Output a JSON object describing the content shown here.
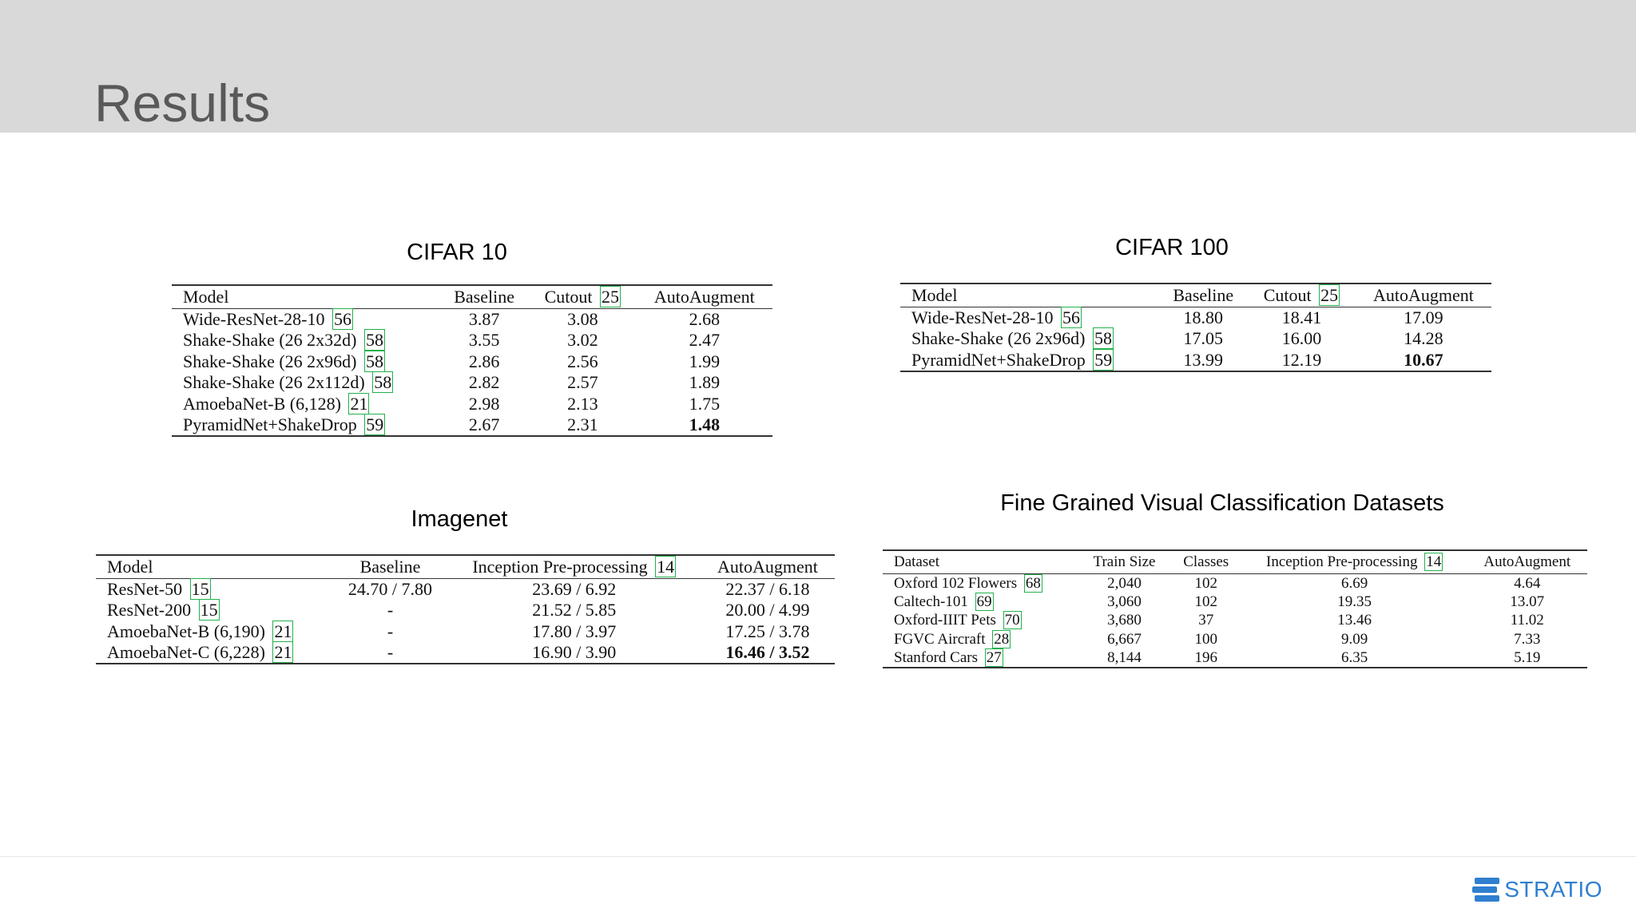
{
  "slide": {
    "title": "Results"
  },
  "tables": [
    {
      "caption": "CIFAR 10",
      "headers": [
        {
          "text": "Model"
        },
        {
          "text": "Baseline"
        },
        {
          "text": "Cutout",
          "ref": "25"
        },
        {
          "text": "AutoAugment"
        }
      ],
      "rows": [
        {
          "cells": [
            {
              "text": "Wide-ResNet-28-10",
              "ref": "56"
            },
            {
              "text": "3.87"
            },
            {
              "text": "3.08"
            },
            {
              "text": "2.68"
            }
          ]
        },
        {
          "cells": [
            {
              "text": "Shake-Shake (26 2x32d)",
              "ref": "58"
            },
            {
              "text": "3.55"
            },
            {
              "text": "3.02"
            },
            {
              "text": "2.47"
            }
          ]
        },
        {
          "cells": [
            {
              "text": "Shake-Shake (26 2x96d)",
              "ref": "58"
            },
            {
              "text": "2.86"
            },
            {
              "text": "2.56"
            },
            {
              "text": "1.99"
            }
          ]
        },
        {
          "cells": [
            {
              "text": "Shake-Shake (26 2x112d)",
              "ref": "58"
            },
            {
              "text": "2.82"
            },
            {
              "text": "2.57"
            },
            {
              "text": "1.89"
            }
          ]
        },
        {
          "cells": [
            {
              "text": "AmoebaNet-B (6,128)",
              "ref": "21"
            },
            {
              "text": "2.98"
            },
            {
              "text": "2.13"
            },
            {
              "text": "1.75"
            }
          ]
        },
        {
          "cells": [
            {
              "text": "PyramidNet+ShakeDrop",
              "ref": "59"
            },
            {
              "text": "2.67"
            },
            {
              "text": "2.31"
            },
            {
              "text": "1.48",
              "bold": true
            }
          ]
        }
      ]
    },
    {
      "caption": "CIFAR 100",
      "headers": [
        {
          "text": "Model"
        },
        {
          "text": "Baseline"
        },
        {
          "text": "Cutout",
          "ref": "25"
        },
        {
          "text": "AutoAugment"
        }
      ],
      "rows": [
        {
          "cells": [
            {
              "text": "Wide-ResNet-28-10",
              "ref": "56"
            },
            {
              "text": "18.80"
            },
            {
              "text": "18.41"
            },
            {
              "text": "17.09"
            }
          ]
        },
        {
          "cells": [
            {
              "text": "Shake-Shake (26 2x96d)",
              "ref": "58"
            },
            {
              "text": "17.05"
            },
            {
              "text": "16.00"
            },
            {
              "text": "14.28"
            }
          ]
        },
        {
          "cells": [
            {
              "text": "PyramidNet+ShakeDrop",
              "ref": "59"
            },
            {
              "text": "13.99"
            },
            {
              "text": "12.19"
            },
            {
              "text": "10.67",
              "bold": true
            }
          ]
        }
      ]
    },
    {
      "caption": "Imagenet",
      "headers": [
        {
          "text": "Model"
        },
        {
          "text": "Baseline"
        },
        {
          "text": "Inception Pre-processing",
          "ref": "14"
        },
        {
          "text": "AutoAugment"
        }
      ],
      "rows": [
        {
          "cells": [
            {
              "text": "ResNet-50",
              "ref": "15"
            },
            {
              "text": "24.70 / 7.80"
            },
            {
              "text": "23.69 / 6.92"
            },
            {
              "text": "22.37 / 6.18"
            }
          ]
        },
        {
          "cells": [
            {
              "text": "ResNet-200",
              "ref": "15"
            },
            {
              "text": "-"
            },
            {
              "text": "21.52 / 5.85"
            },
            {
              "text": "20.00 / 4.99"
            }
          ]
        },
        {
          "cells": [
            {
              "text": "AmoebaNet-B (6,190)",
              "ref": "21"
            },
            {
              "text": "-"
            },
            {
              "text": "17.80 / 3.97"
            },
            {
              "text": "17.25 / 3.78"
            }
          ]
        },
        {
          "cells": [
            {
              "text": "AmoebaNet-C (6,228)",
              "ref": "21"
            },
            {
              "text": "-"
            },
            {
              "text": "16.90 / 3.90"
            },
            {
              "text": "16.46 / 3.52",
              "bold": true
            }
          ]
        }
      ]
    },
    {
      "caption": "Fine Grained Visual Classification Datasets",
      "headers": [
        {
          "text": "Dataset"
        },
        {
          "text": "Train Size"
        },
        {
          "text": "Classes"
        },
        {
          "text": "Inception Pre-processing",
          "ref": "14"
        },
        {
          "text": "AutoAugment"
        }
      ],
      "rows": [
        {
          "cells": [
            {
              "text": "Oxford 102 Flowers",
              "ref": "68"
            },
            {
              "text": "2,040"
            },
            {
              "text": "102"
            },
            {
              "text": "6.69"
            },
            {
              "text": "4.64"
            }
          ]
        },
        {
          "cells": [
            {
              "text": "Caltech-101",
              "ref": "69"
            },
            {
              "text": "3,060"
            },
            {
              "text": "102"
            },
            {
              "text": "19.35"
            },
            {
              "text": "13.07"
            }
          ]
        },
        {
          "cells": [
            {
              "text": "Oxford-IIIT Pets",
              "ref": "70"
            },
            {
              "text": "3,680"
            },
            {
              "text": "37"
            },
            {
              "text": "13.46"
            },
            {
              "text": "11.02"
            }
          ]
        },
        {
          "cells": [
            {
              "text": "FGVC Aircraft",
              "ref": "28"
            },
            {
              "text": "6,667"
            },
            {
              "text": "100"
            },
            {
              "text": "9.09"
            },
            {
              "text": "7.33"
            }
          ]
        },
        {
          "cells": [
            {
              "text": "Stanford Cars",
              "ref": "27"
            },
            {
              "text": "8,144"
            },
            {
              "text": "196"
            },
            {
              "text": "6.35"
            },
            {
              "text": "5.19"
            }
          ]
        }
      ]
    }
  ],
  "footer": {
    "logo_text": "STRATIO",
    "logo_icon": "stratio-logo-icon",
    "brand_color": "#2f7fd0",
    "ref_box_color": "#22b14c"
  }
}
